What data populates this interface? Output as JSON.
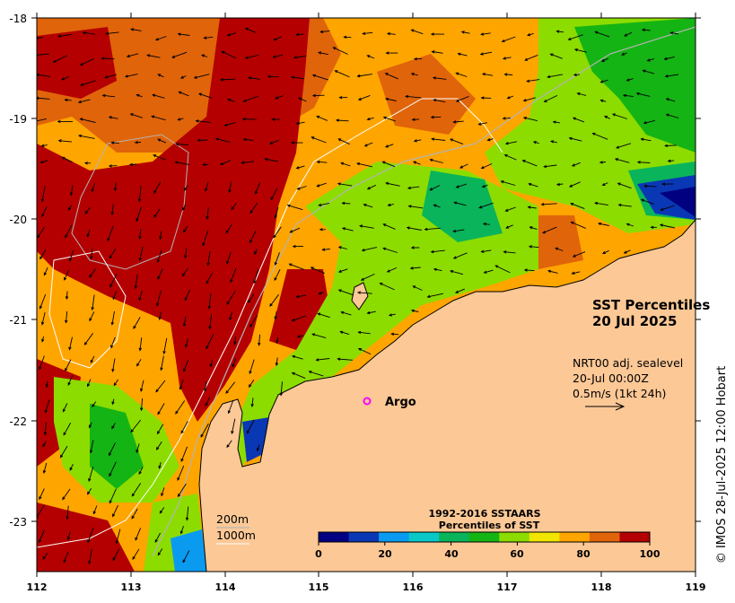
{
  "map": {
    "title_line1": "SST Percentiles",
    "title_line2": "20 Jul 2025",
    "y_ticks": [
      "-18",
      "-19",
      "-20",
      "-21",
      "-22",
      "-23"
    ],
    "x_ticks": [
      "112",
      "113",
      "114",
      "115",
      "116",
      "117",
      "118",
      "119"
    ],
    "current_label1": "NRT00 adj. sealevel",
    "current_label2": "20-Jul 00:00Z",
    "current_label3": "0.5m/s (1kt 24h)",
    "argo_label": "Argo",
    "isobath_200": "200m",
    "isobath_1000": "1000m",
    "credit": "© IMOS 28-Jul-2025 12:00 Hobart",
    "land_color": "#fcc896"
  },
  "colorbar": {
    "title1": "1992-2016 SSTAARS",
    "title2": "Percentiles of SST",
    "ticks": [
      "0",
      "20",
      "40",
      "60",
      "80",
      "100"
    ],
    "colors": [
      "#000080",
      "#0a37b4",
      "#0a9bf0",
      "#0ac8c8",
      "#0ab45a",
      "#14b414",
      "#8cdc00",
      "#f0e600",
      "#ffa500",
      "#e0640a",
      "#b40000"
    ]
  }
}
